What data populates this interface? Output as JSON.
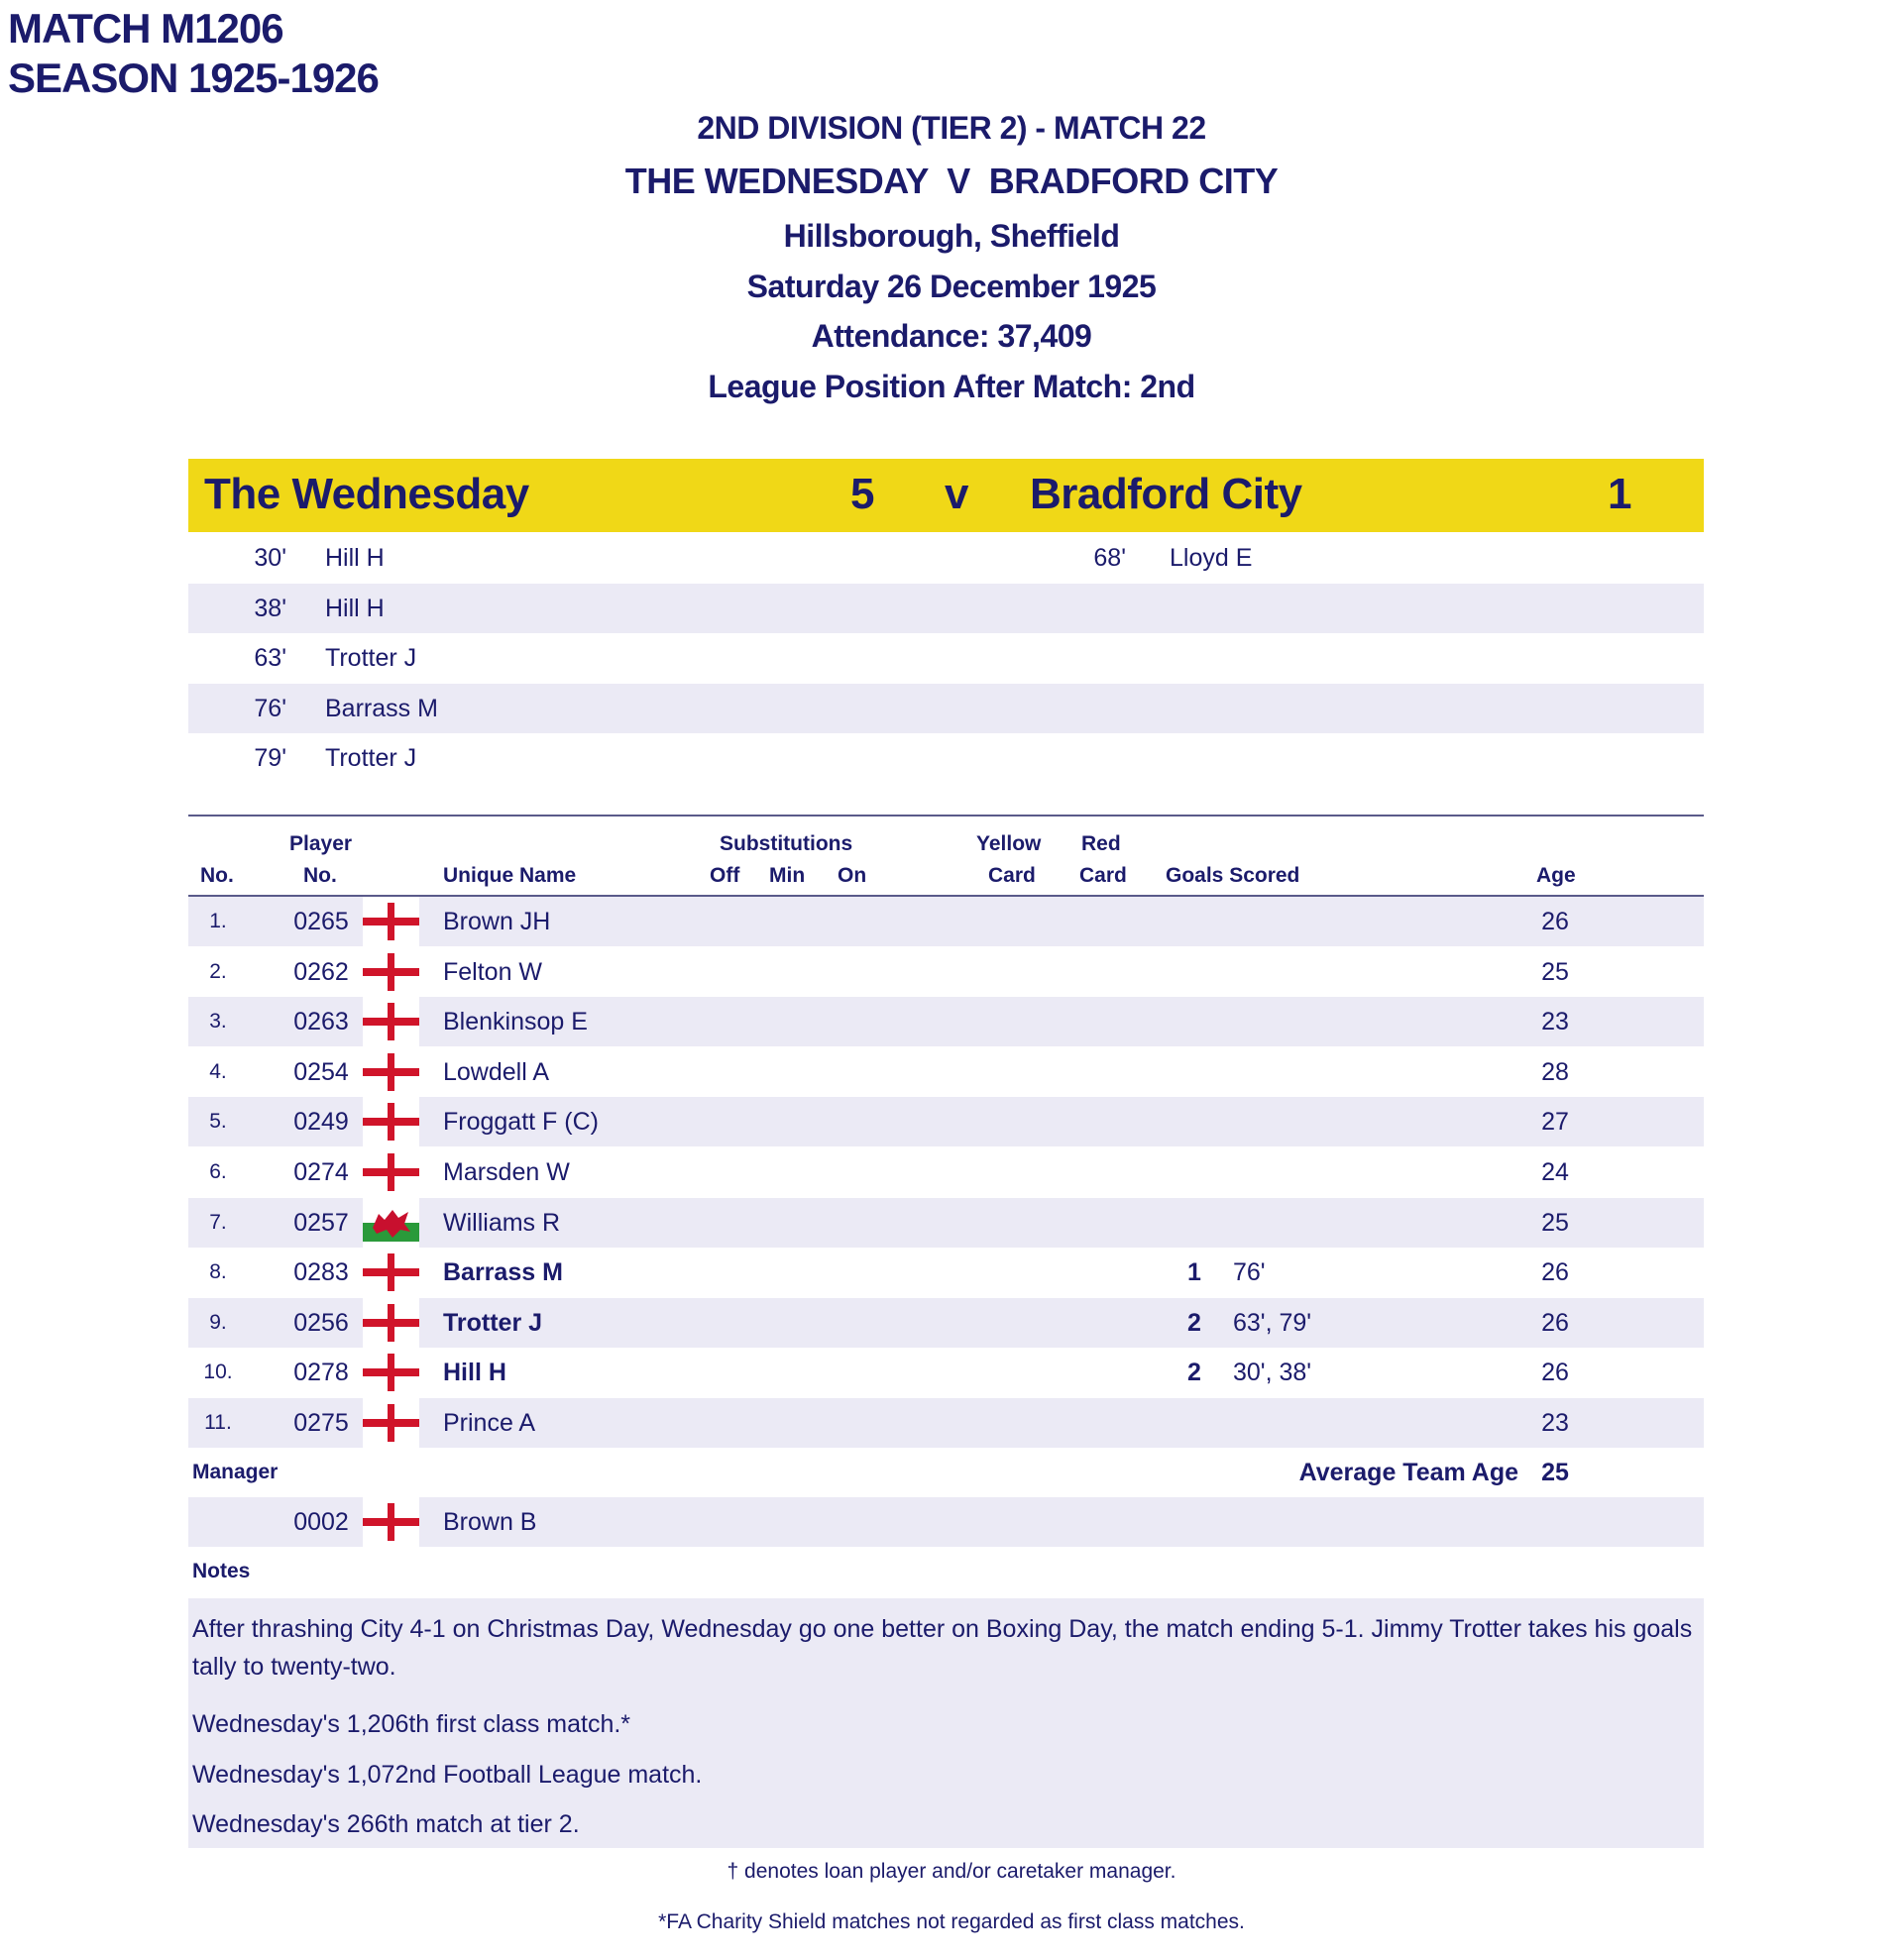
{
  "match_id": "MATCH M1206",
  "season": "SEASON 1925-1926",
  "header": {
    "competition": "2ND DIVISION (TIER 2) - MATCH 22",
    "fixture": "THE WEDNESDAY  V  BRADFORD CITY",
    "venue": "Hillsborough, Sheffield",
    "date": "Saturday 26 December 1925",
    "attendance": "Attendance: 37,409",
    "league_position": "League Position After Match: 2nd"
  },
  "score": {
    "home_team": "The Wednesday",
    "home_score": "5",
    "versus": "v",
    "away_team": "Bradford City",
    "away_score": "1",
    "bar_color": "#f0d817"
  },
  "goals": [
    {
      "home_min": "30'",
      "home_scorer": "Hill H",
      "away_min": "68'",
      "away_scorer": "Lloyd E"
    },
    {
      "home_min": "38'",
      "home_scorer": "Hill H",
      "away_min": "",
      "away_scorer": ""
    },
    {
      "home_min": "63'",
      "home_scorer": "Trotter J",
      "away_min": "",
      "away_scorer": ""
    },
    {
      "home_min": "76'",
      "home_scorer": "Barrass M",
      "away_min": "",
      "away_scorer": ""
    },
    {
      "home_min": "79'",
      "home_scorer": "Trotter J",
      "away_min": "",
      "away_scorer": ""
    }
  ],
  "table_headers": {
    "no": "No.",
    "player_no_1": "Player",
    "player_no_2": "No.",
    "unique_name": "Unique Name",
    "substitutions": "Substitutions",
    "off": "Off",
    "min": "Min",
    "on": "On",
    "yellow_1": "Yellow",
    "yellow_2": "Card",
    "red_1": "Red",
    "red_2": "Card",
    "goals_scored": "Goals Scored",
    "age": "Age"
  },
  "players": [
    {
      "no": "1.",
      "player_no": "0265",
      "flag": "england-flag",
      "name": "Brown JH",
      "bold": false,
      "goals": "",
      "scored": "",
      "age": "26"
    },
    {
      "no": "2.",
      "player_no": "0262",
      "flag": "england-flag",
      "name": "Felton W",
      "bold": false,
      "goals": "",
      "scored": "",
      "age": "25"
    },
    {
      "no": "3.",
      "player_no": "0263",
      "flag": "england-flag",
      "name": "Blenkinsop E",
      "bold": false,
      "goals": "",
      "scored": "",
      "age": "23"
    },
    {
      "no": "4.",
      "player_no": "0254",
      "flag": "england-flag",
      "name": "Lowdell A",
      "bold": false,
      "goals": "",
      "scored": "",
      "age": "28"
    },
    {
      "no": "5.",
      "player_no": "0249",
      "flag": "england-flag",
      "name": "Froggatt F (C)",
      "bold": false,
      "goals": "",
      "scored": "",
      "age": "27"
    },
    {
      "no": "6.",
      "player_no": "0274",
      "flag": "england-flag",
      "name": "Marsden W",
      "bold": false,
      "goals": "",
      "scored": "",
      "age": "24"
    },
    {
      "no": "7.",
      "player_no": "0257",
      "flag": "wales-flag",
      "name": "Williams R",
      "bold": false,
      "goals": "",
      "scored": "",
      "age": "25"
    },
    {
      "no": "8.",
      "player_no": "0283",
      "flag": "england-flag",
      "name": "Barrass M",
      "bold": true,
      "goals": "1",
      "scored": "76'",
      "age": "26"
    },
    {
      "no": "9.",
      "player_no": "0256",
      "flag": "england-flag",
      "name": "Trotter J",
      "bold": true,
      "goals": "2",
      "scored": "63', 79'",
      "age": "26"
    },
    {
      "no": "10.",
      "player_no": "0278",
      "flag": "england-flag",
      "name": "Hill H",
      "bold": true,
      "goals": "2",
      "scored": "30', 38'",
      "age": "26"
    },
    {
      "no": "11.",
      "player_no": "0275",
      "flag": "england-flag",
      "name": "Prince A",
      "bold": false,
      "goals": "",
      "scored": "",
      "age": "23"
    }
  ],
  "manager": {
    "label": "Manager",
    "average_age_label": "Average Team Age",
    "average_age": "25",
    "player_no": "0002",
    "flag": "england-flag",
    "name": "Brown B"
  },
  "notes": {
    "label": "Notes",
    "items": [
      "After thrashing City 4-1 on Christmas Day, Wednesday go one better on Boxing Day, the match ending 5-1.  Jimmy Trotter takes his goals tally to twenty-two.",
      "Wednesday's 1,206th first class match.*",
      "Wednesday's 1,072nd Football League match.",
      "Wednesday's 266th match at tier 2."
    ]
  },
  "footnotes": [
    "† denotes loan player and/or caretaker manager.",
    "*FA Charity Shield matches not regarded as first class matches."
  ],
  "colors": {
    "text": "#1b1b6b",
    "stripe": "#ebeaf5",
    "england_cross": "#d0142a",
    "wales_green": "#2a9a3a"
  }
}
